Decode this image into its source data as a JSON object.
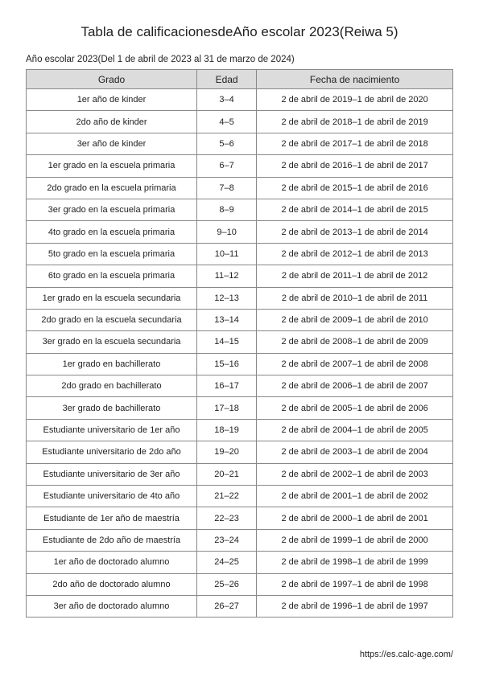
{
  "title": "Tabla de calificacionesdeAño escolar 2023(Reiwa 5)",
  "subtitle": "Año escolar 2023(Del 1 de abril de 2023 al 31 de marzo de 2024)",
  "footer_url": "https://es.calc-age.com/",
  "table": {
    "headers": {
      "grade": "Grado",
      "age": "Edad",
      "dob": "Fecha de nacimiento"
    },
    "rows": [
      {
        "grade": "1er año de kinder",
        "age": "3–4",
        "dob": "2 de abril de 2019–1 de abril de 2020"
      },
      {
        "grade": "2do año de kinder",
        "age": "4–5",
        "dob": "2 de abril de 2018–1 de abril de 2019"
      },
      {
        "grade": "3er año de kinder",
        "age": "5–6",
        "dob": "2 de abril de 2017–1 de abril de 2018"
      },
      {
        "grade": "1er grado en la escuela primaria",
        "age": "6–7",
        "dob": "2 de abril de 2016–1 de abril de 2017"
      },
      {
        "grade": "2do grado en la escuela primaria",
        "age": "7–8",
        "dob": "2 de abril de 2015–1 de abril de 2016"
      },
      {
        "grade": "3er grado en la escuela primaria",
        "age": "8–9",
        "dob": "2 de abril de 2014–1 de abril de 2015"
      },
      {
        "grade": "4to grado en la escuela primaria",
        "age": "9–10",
        "dob": "2 de abril de 2013–1 de abril de 2014"
      },
      {
        "grade": "5to grado en la escuela primaria",
        "age": "10–11",
        "dob": "2 de abril de 2012–1 de abril de 2013"
      },
      {
        "grade": "6to grado en la escuela primaria",
        "age": "11–12",
        "dob": "2 de abril de 2011–1 de abril de 2012"
      },
      {
        "grade": "1er grado en la escuela secundaria",
        "age": "12–13",
        "dob": "2 de abril de 2010–1 de abril de 2011"
      },
      {
        "grade": "2do grado en la escuela secundaria",
        "age": "13–14",
        "dob": "2 de abril de 2009–1 de abril de 2010"
      },
      {
        "grade": "3er grado en la escuela secundaria",
        "age": "14–15",
        "dob": "2 de abril de 2008–1 de abril de 2009"
      },
      {
        "grade": "1er grado en bachillerato",
        "age": "15–16",
        "dob": "2 de abril de 2007–1 de abril de 2008"
      },
      {
        "grade": "2do grado en bachillerato",
        "age": "16–17",
        "dob": "2 de abril de 2006–1 de abril de 2007"
      },
      {
        "grade": "3er grado de bachillerato",
        "age": "17–18",
        "dob": "2 de abril de 2005–1 de abril de 2006"
      },
      {
        "grade": "Estudiante universitario de 1er año",
        "age": "18–19",
        "dob": "2 de abril de 2004–1 de abril de 2005"
      },
      {
        "grade": "Estudiante universitario de 2do año",
        "age": "19–20",
        "dob": "2 de abril de 2003–1 de abril de 2004"
      },
      {
        "grade": "Estudiante universitario de 3er año",
        "age": "20–21",
        "dob": "2 de abril de 2002–1 de abril de 2003"
      },
      {
        "grade": "Estudiante universitario de 4to año",
        "age": "21–22",
        "dob": "2 de abril de 2001–1 de abril de 2002"
      },
      {
        "grade": "Estudiante de 1er año de maestría",
        "age": "22–23",
        "dob": "2 de abril de 2000–1 de abril de 2001"
      },
      {
        "grade": "Estudiante de 2do año de maestría",
        "age": "23–24",
        "dob": "2 de abril de 1999–1 de abril de 2000"
      },
      {
        "grade": "1er año de doctorado alumno",
        "age": "24–25",
        "dob": "2 de abril de 1998–1 de abril de 1999"
      },
      {
        "grade": "2do año de doctorado alumno",
        "age": "25–26",
        "dob": "2 de abril de 1997–1 de abril de 1998"
      },
      {
        "grade": "3er año de doctorado alumno",
        "age": "26–27",
        "dob": "2 de abril de 1996–1 de abril de 1997"
      }
    ]
  }
}
